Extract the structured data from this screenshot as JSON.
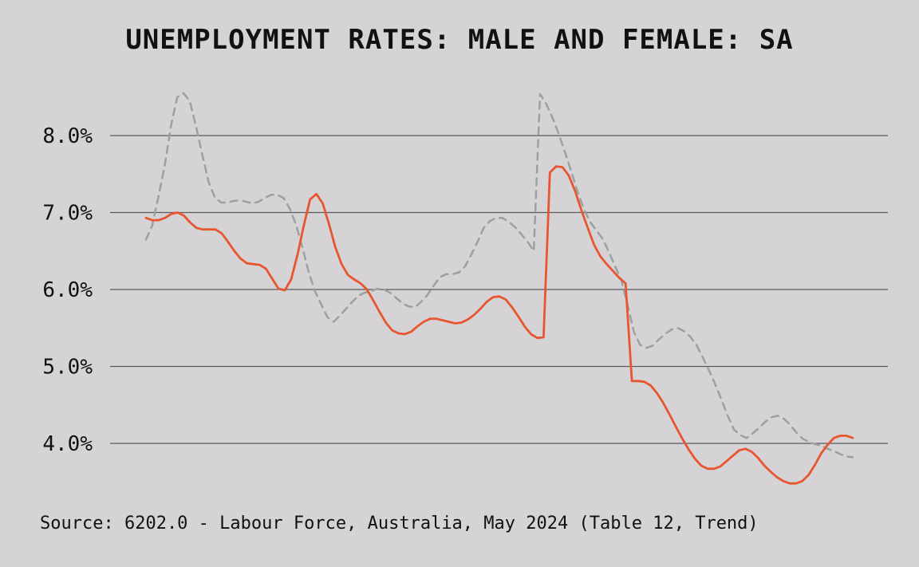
{
  "chart_data": {
    "type": "line",
    "title": "UNEMPLOYMENT RATES: MALE AND FEMALE: SA",
    "xlabel": "",
    "ylabel": "",
    "y_ticks": [
      "8.0%",
      "7.0%",
      "6.0%",
      "5.0%",
      "4.0%"
    ],
    "y_tick_values": [
      8.0,
      7.0,
      6.0,
      5.0,
      4.0
    ],
    "ylim": [
      3.3,
      8.6
    ],
    "grid": true,
    "legend": "none",
    "series": [
      {
        "color": "#e8562f",
        "style": "solid",
        "values": [
          6.93,
          6.9,
          6.9,
          6.93,
          6.98,
          7.0,
          6.96,
          6.87,
          6.8,
          6.78,
          6.78,
          6.78,
          6.73,
          6.62,
          6.5,
          6.4,
          6.34,
          6.33,
          6.32,
          6.27,
          6.14,
          6.01,
          5.99,
          6.13,
          6.45,
          6.83,
          7.17,
          7.24,
          7.12,
          6.85,
          6.55,
          6.33,
          6.19,
          6.13,
          6.08,
          6.0,
          5.86,
          5.71,
          5.57,
          5.47,
          5.43,
          5.42,
          5.45,
          5.52,
          5.58,
          5.62,
          5.62,
          5.6,
          5.58,
          5.56,
          5.57,
          5.61,
          5.67,
          5.75,
          5.84,
          5.9,
          5.91,
          5.87,
          5.77,
          5.65,
          5.52,
          5.42,
          5.37,
          5.38,
          7.52,
          7.6,
          7.59,
          7.48,
          7.28,
          7.03,
          6.8,
          6.58,
          6.43,
          6.33,
          6.24,
          6.15,
          6.08,
          4.81,
          4.81,
          4.8,
          4.75,
          4.65,
          4.52,
          4.37,
          4.21,
          4.06,
          3.92,
          3.8,
          3.71,
          3.67,
          3.67,
          3.7,
          3.77,
          3.84,
          3.91,
          3.93,
          3.89,
          3.81,
          3.71,
          3.63,
          3.56,
          3.51,
          3.48,
          3.48,
          3.51,
          3.59,
          3.72,
          3.87,
          3.98,
          4.07,
          4.1,
          4.1,
          4.07
        ]
      },
      {
        "color": "#9aa1a1",
        "style": "dashed",
        "values": [
          6.65,
          6.83,
          7.21,
          7.61,
          8.13,
          8.5,
          8.55,
          8.45,
          8.12,
          7.75,
          7.4,
          7.2,
          7.13,
          7.13,
          7.15,
          7.16,
          7.14,
          7.12,
          7.14,
          7.19,
          7.23,
          7.23,
          7.19,
          7.05,
          6.84,
          6.55,
          6.23,
          5.98,
          5.81,
          5.64,
          5.58,
          5.66,
          5.75,
          5.84,
          5.92,
          5.96,
          5.98,
          6.01,
          6.0,
          5.96,
          5.89,
          5.82,
          5.78,
          5.77,
          5.84,
          5.93,
          6.05,
          6.16,
          6.2,
          6.2,
          6.22,
          6.3,
          6.45,
          6.62,
          6.8,
          6.89,
          6.93,
          6.93,
          6.88,
          6.81,
          6.72,
          6.62,
          6.5,
          8.54,
          8.41,
          8.23,
          8.02,
          7.78,
          7.53,
          7.27,
          7.05,
          6.88,
          6.77,
          6.66,
          6.49,
          6.3,
          6.12,
          5.8,
          5.45,
          5.28,
          5.24,
          5.27,
          5.35,
          5.42,
          5.48,
          5.5,
          5.46,
          5.39,
          5.28,
          5.12,
          4.95,
          4.77,
          4.57,
          4.36,
          4.18,
          4.11,
          4.07,
          4.13,
          4.2,
          4.28,
          4.34,
          4.36,
          4.32,
          4.24,
          4.14,
          4.06,
          4.02,
          3.99,
          3.97,
          3.93,
          3.9,
          3.86,
          3.83,
          3.82
        ]
      }
    ]
  },
  "source": "Source: 6202.0 - Labour Force, Australia, May 2024 (Table 12, Trend)"
}
